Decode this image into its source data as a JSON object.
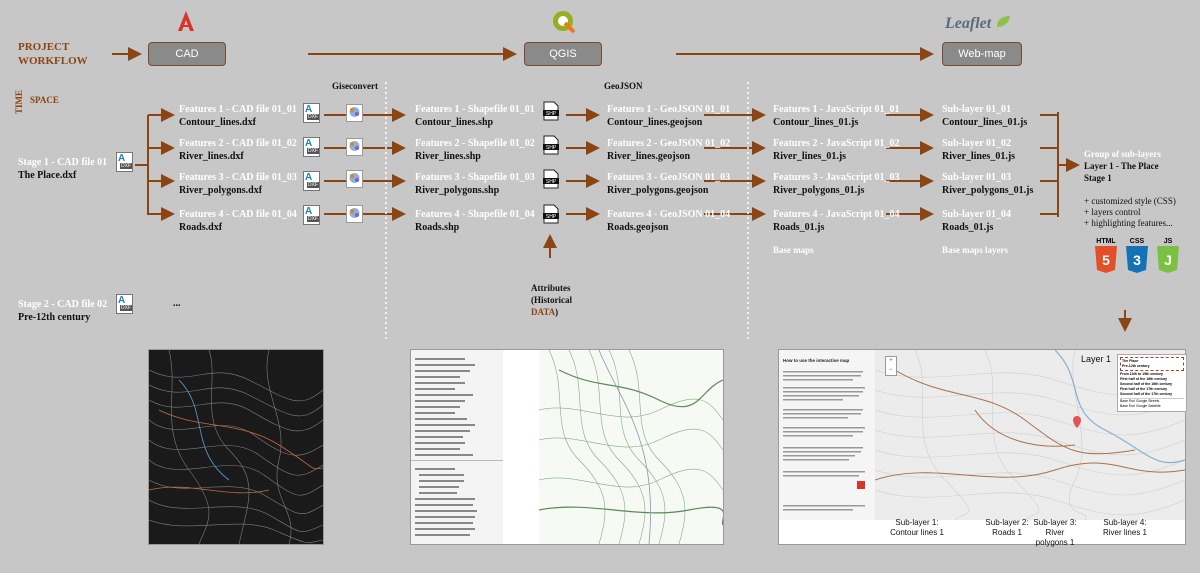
{
  "header": {
    "project_workflow_line1": "PROJECT",
    "project_workflow_line2": "WORKFLOW",
    "space": "SPACE",
    "time": "TIME"
  },
  "stages": {
    "cad": "CAD",
    "qgis": "QGIS",
    "webmap": "Web-map",
    "leaflet_logo_text": "Leaflet"
  },
  "column_headers": {
    "giseconvert": "Giseconvert",
    "geojson": "GeoJSON"
  },
  "stage1": {
    "line1": "Stage 1 - CAD file 01",
    "line2": "The Place.dxf"
  },
  "stage2": {
    "line1": "Stage 2 - CAD file 02",
    "line2": "Pre-12th century",
    "ellipsis": "..."
  },
  "cad_features": [
    {
      "t1": "Features 1 - CAD file 01_01",
      "t2": "Contour_lines.dxf"
    },
    {
      "t1": "Features 2 - CAD file 01_02",
      "t2": "River_lines.dxf"
    },
    {
      "t1": "Features 3 - CAD file 01_03",
      "t2": "River_polygons.dxf"
    },
    {
      "t1": "Features 4 - CAD file 01_04",
      "t2": "Roads.dxf"
    }
  ],
  "shp_features": [
    {
      "t1": "Features 1 - Shapefile 01_01",
      "t2": "Contour_lines.shp"
    },
    {
      "t1": "Features 2 - Shapefile 01_02",
      "t2": "River_lines.shp"
    },
    {
      "t1": "Features 3 - Shapefile 01_03",
      "t2": "River_polygons.shp"
    },
    {
      "t1": "Features 4 - Shapefile 01_04",
      "t2": "Roads.shp"
    }
  ],
  "geojson_features": [
    {
      "t1": "Features 1 - GeoJSON 01_01",
      "t2": "Contour_lines.geojson"
    },
    {
      "t1": "Features 2 - GeoJSON 01_02",
      "t2": "River_lines.geojson"
    },
    {
      "t1": "Features 3 - GeoJSON 01_03",
      "t2": "River_polygons.geojson"
    },
    {
      "t1": "Features 4 - GeoJSON 01_04",
      "t2": "Roads.geojson"
    }
  ],
  "js_features": [
    {
      "t1": "Features 1 - JavaScript 01_01",
      "t2": "Contour_lines_01.js"
    },
    {
      "t1": "Features 2 - JavaScript 01_02",
      "t2": "River_lines_01.js"
    },
    {
      "t1": "Features 3 - JavaScript 01_03",
      "t2": "River_polygons_01.js"
    },
    {
      "t1": "Features 4 - JavaScript 01_04",
      "t2": "Roads_01.js"
    }
  ],
  "sublayers": [
    {
      "t1": "Sub-layer 01_01",
      "t2": "Contour_lines_01.js"
    },
    {
      "t1": "Sub-layer 01_02",
      "t2": "River_lines_01.js"
    },
    {
      "t1": "Sub-layer 01_03",
      "t2": "River_polygons_01.js"
    },
    {
      "t1": "Sub-layer 01_04",
      "t2": "Roads_01.js"
    }
  ],
  "base_maps": "Base maps",
  "base_maps_layers": "Base maps layers",
  "attributes": {
    "l1": "Attributes",
    "l2": "(Historical",
    "l3": "DATA",
    "l4": ")"
  },
  "group": {
    "l1": "Group of sub-layers",
    "l2": "Layer 1 - The Place",
    "l3": "Stage 1",
    "b1": "+ customized style (CSS)",
    "b2": "+ layers control",
    "b3": "+ highlighting features..."
  },
  "tech_badges": {
    "html": "HTML",
    "html_num": "5",
    "css": "CSS",
    "css_num": "3",
    "js": "JS",
    "js_num": "J"
  },
  "file_tags": {
    "dxf": "DXF",
    "shp": "SHP",
    "dxf_letter": "A"
  },
  "webmap_screenshot": {
    "layer_label": "Layer 1",
    "legend_items": [
      "The Place",
      "Pre-12th century",
      "From 13th to 15th century",
      "First half of the 16th century",
      "Second half of the 16th century",
      "First half of the 17th century",
      "Second half of the 17th century"
    ],
    "base_items": [
      "Base Esri Google Streets",
      "Base Esri Google Satellite"
    ],
    "side_title": "How to use the interactive map",
    "zoom_in": "+",
    "zoom_out": "−"
  },
  "sublayer_labels": [
    {
      "l1": "Sub-layer 1:",
      "l2": "Contour lines 1"
    },
    {
      "l1": "Sub-layer 2:",
      "l2": "Roads 1"
    },
    {
      "l1": "Sub-layer 3:",
      "l2": "River",
      "l3": "polygons 1"
    },
    {
      "l1": "Sub-layer 4:",
      "l2": "River lines 1"
    }
  ],
  "colors": {
    "brown": "#8b4513",
    "arrow": "#8b4513",
    "bg": "#c7c7c7",
    "html5": "#e34f26",
    "css3": "#1572b6",
    "js": "#7ac142"
  }
}
